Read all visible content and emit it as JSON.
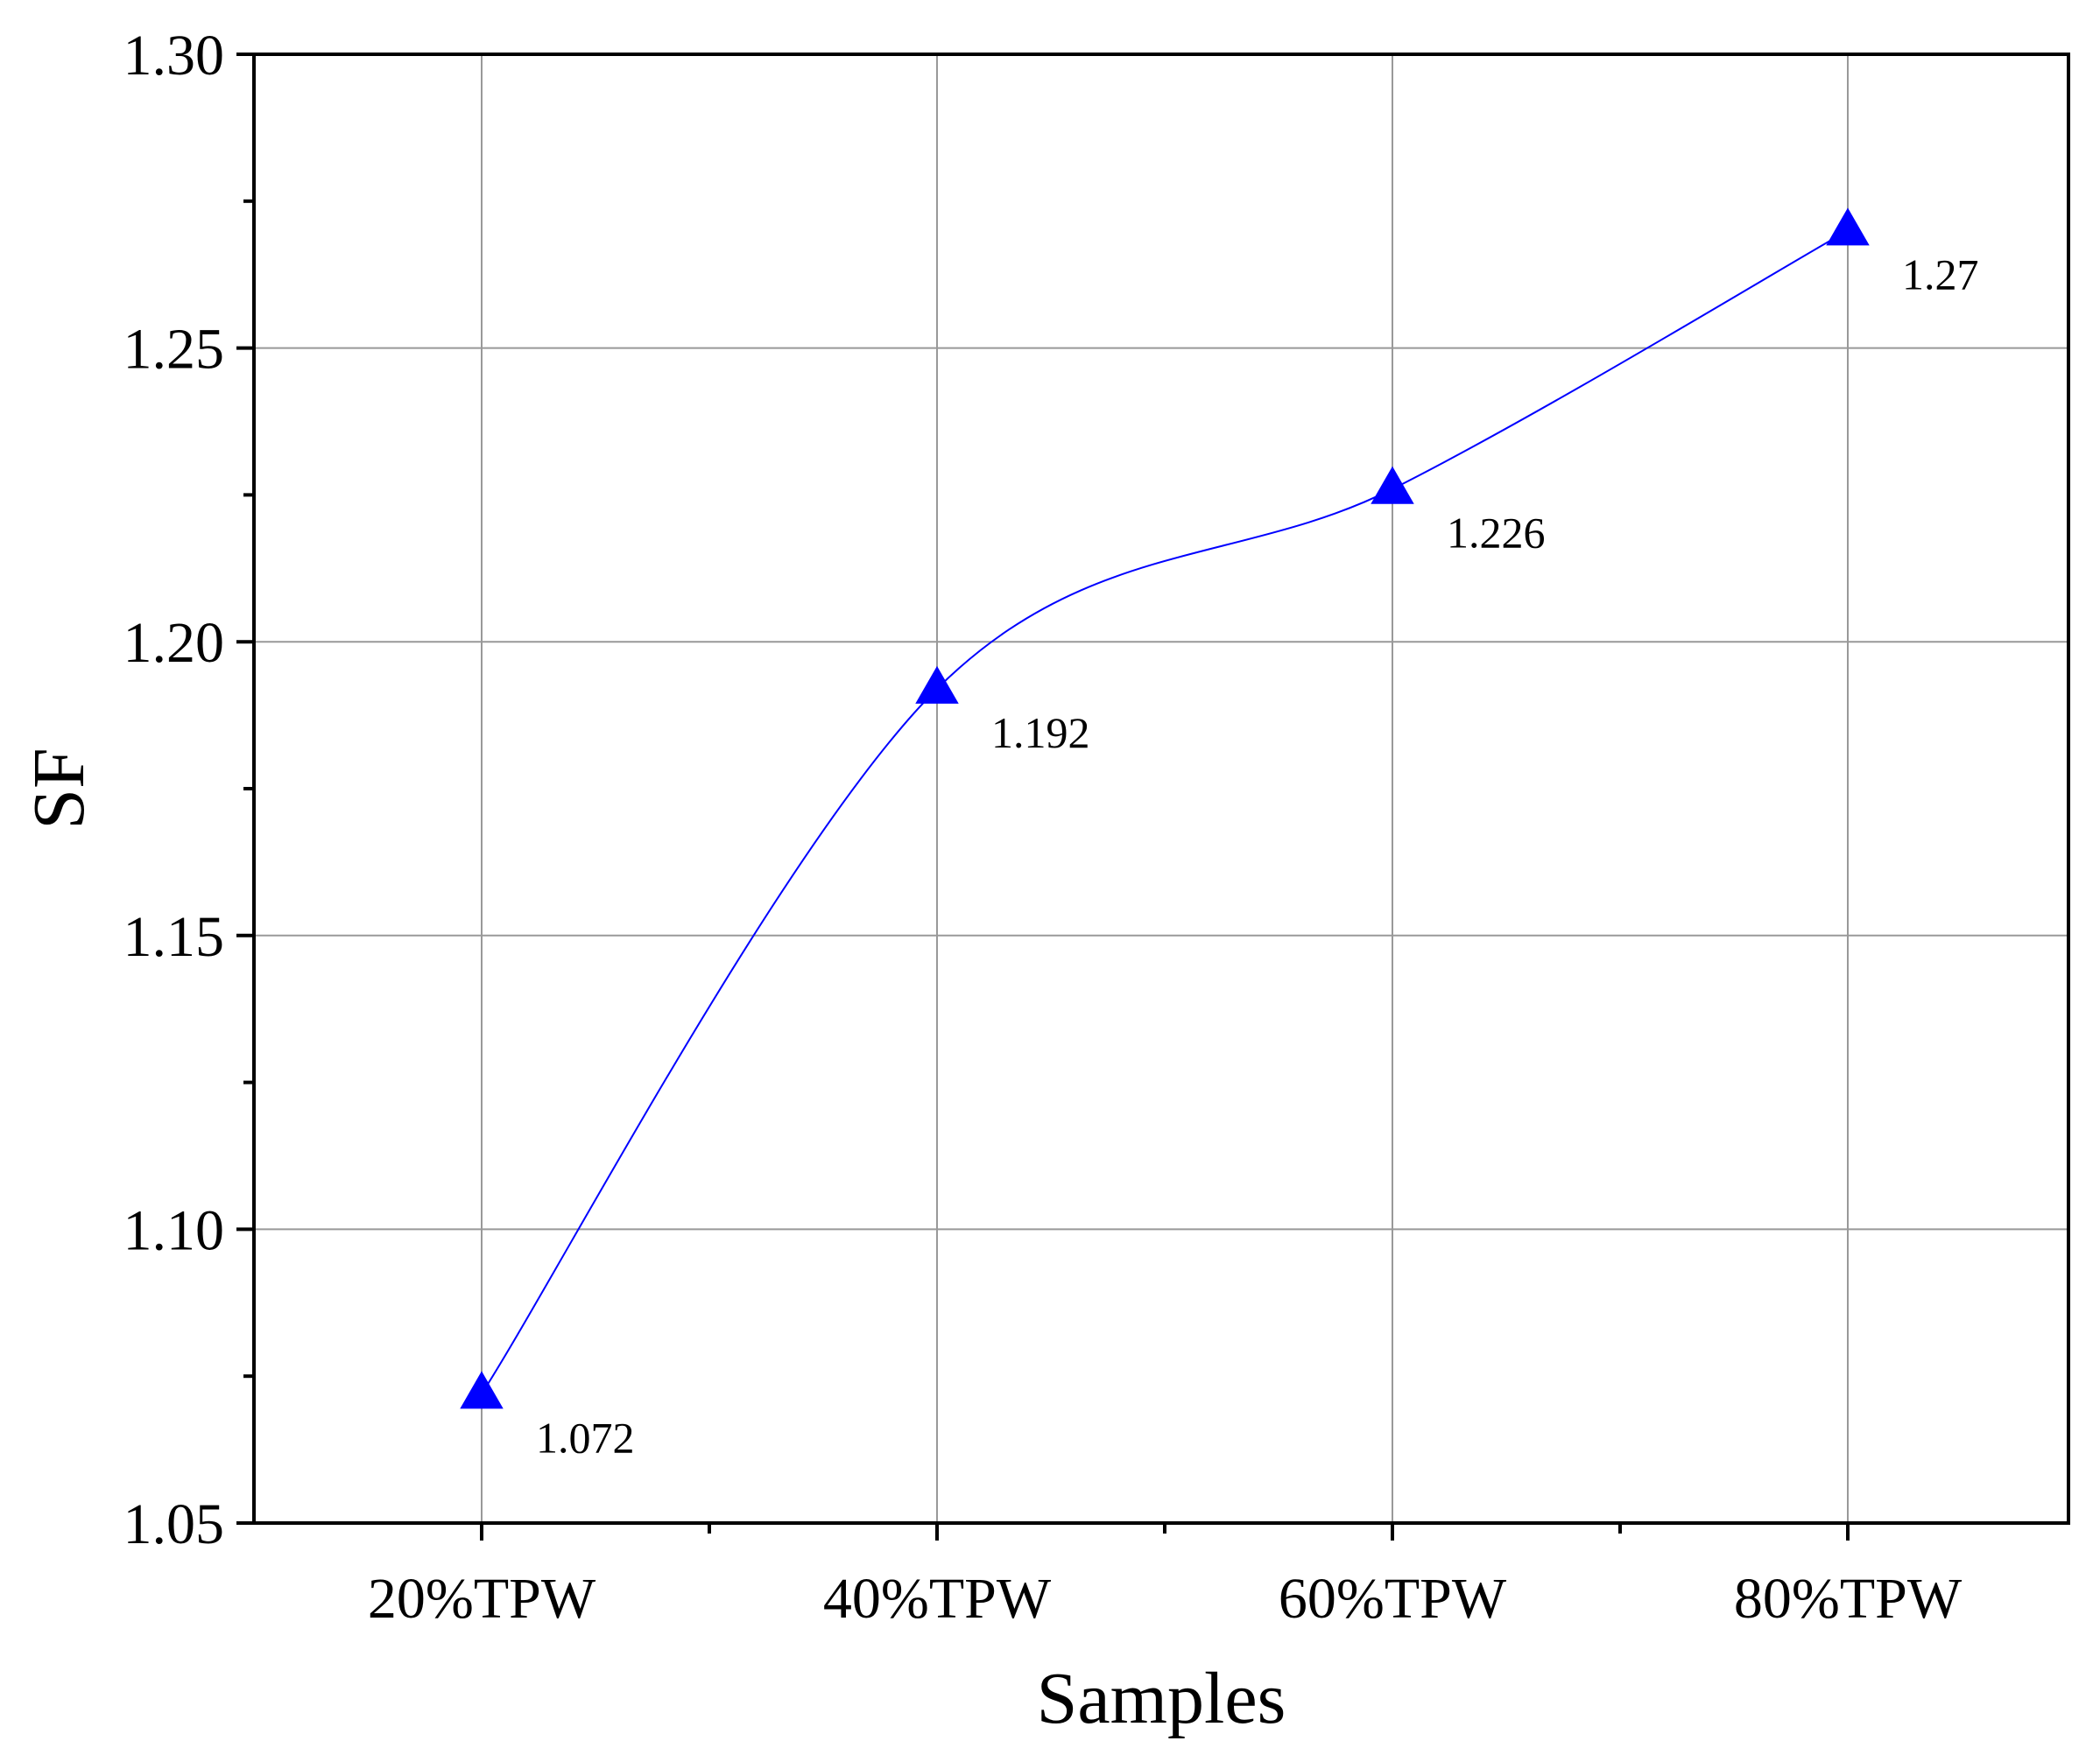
{
  "chart_data": {
    "type": "line",
    "categories": [
      "20%TPW",
      "40%TPW",
      "60%TPW",
      "80%TPW"
    ],
    "series": [
      {
        "values": [
          1.072,
          1.192,
          1.226,
          1.27
        ],
        "data_labels": [
          "1.072",
          "1.192",
          "1.226",
          "1.27"
        ],
        "color": "#0000ff",
        "marker": "triangle",
        "smooth": true
      }
    ],
    "xlabel": "Samples",
    "ylabel": "SF",
    "ylim": [
      1.05,
      1.3
    ],
    "yticks": [
      1.05,
      1.1,
      1.15,
      1.2,
      1.25,
      1.3
    ],
    "ytick_labels": [
      "1.05",
      "1.10",
      "1.15",
      "1.20",
      "1.25",
      "1.30"
    ],
    "grid": true,
    "colors": {
      "grid": "#999999",
      "axis": "#000000",
      "series": "#0000ff"
    }
  }
}
